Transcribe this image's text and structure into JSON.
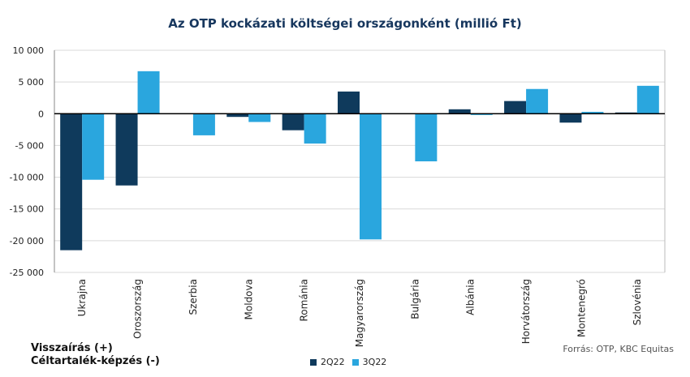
{
  "title": "Az OTP kockázati költségei országonként (millió Ft)",
  "notes": [
    "Visszaírás (+)",
    "Céltartalék-képzés  (-)"
  ],
  "source": "Forrás: OTP, KBC Equitas",
  "colors": {
    "2Q22": "#0f3a5c",
    "3Q22": "#2aa6de",
    "axis": "#000000",
    "grid": "#d9d9d9"
  },
  "chart_data": {
    "type": "bar",
    "categories": [
      "Ukrajna",
      "Oroszország",
      "Szerbia",
      "Moldova",
      "Románia",
      "Magyarország",
      "Bulgária",
      "Albánia",
      "Horvátország",
      "Montenegró",
      "Szlovénia"
    ],
    "series": [
      {
        "name": "2Q22",
        "values": [
          -21500,
          -11300,
          0,
          -500,
          -2600,
          3500,
          0,
          700,
          2000,
          -1400,
          200
        ]
      },
      {
        "name": "3Q22",
        "values": [
          -10400,
          6700,
          -3400,
          -1300,
          -4700,
          -19800,
          -7500,
          -200,
          3900,
          300,
          4400
        ]
      }
    ],
    "yticks": [
      "10 000",
      "5 000",
      "0",
      "-5 000",
      "-10 000",
      "-15 000",
      "-20 000",
      "-25 000"
    ],
    "ylim": [
      -25000,
      10000
    ],
    "grid": true,
    "legend_position": "bottom"
  }
}
